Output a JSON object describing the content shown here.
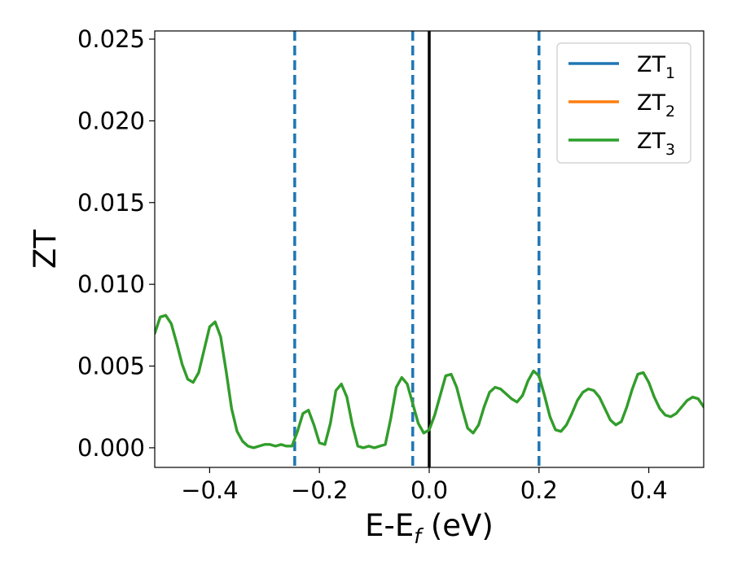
{
  "chart_data": {
    "type": "line",
    "title": "",
    "xlabel": {
      "main": "E-E",
      "sub": "f",
      "suffix": " (eV)"
    },
    "ylabel": "ZT",
    "xlim": [
      -0.5,
      0.5
    ],
    "ylim": [
      -0.0012,
      0.0255
    ],
    "xticks": [
      -0.4,
      -0.2,
      0.0,
      0.2,
      0.4
    ],
    "xtick_labels": [
      "−0.4",
      "−0.2",
      "0.0",
      "0.2",
      "0.4"
    ],
    "yticks": [
      0.0,
      0.005,
      0.01,
      0.015,
      0.02,
      0.025
    ],
    "ytick_labels": [
      "0.000",
      "0.005",
      "0.010",
      "0.015",
      "0.020",
      "0.025"
    ],
    "grid": false,
    "legend_position": "top-right",
    "vlines": [
      {
        "x": 0.0,
        "style": "solid",
        "color": "#000000"
      },
      {
        "x": -0.245,
        "style": "dashed",
        "color": "#1f77b4"
      },
      {
        "x": -0.03,
        "style": "dashed",
        "color": "#1f77b4"
      },
      {
        "x": 0.2,
        "style": "dashed",
        "color": "#1f77b4"
      }
    ],
    "series": [
      {
        "name": "ZT",
        "sub": "1",
        "color": "#1f77b4",
        "x": [
          -0.5,
          -0.49,
          -0.48,
          -0.47,
          -0.46,
          -0.45,
          -0.44,
          -0.43,
          -0.42,
          -0.41,
          -0.4,
          -0.39,
          -0.38,
          -0.37,
          -0.36,
          -0.35,
          -0.34,
          -0.33,
          -0.32,
          -0.31,
          -0.3,
          -0.29,
          -0.28,
          -0.27,
          -0.26,
          -0.25,
          -0.24,
          -0.23,
          -0.22,
          -0.21,
          -0.2,
          -0.19,
          -0.18,
          -0.17,
          -0.16,
          -0.15,
          -0.14,
          -0.13,
          -0.12,
          -0.11,
          -0.1,
          -0.09,
          -0.08,
          -0.07,
          -0.06,
          -0.05,
          -0.04,
          -0.03,
          -0.02,
          -0.01,
          0.0,
          0.01,
          0.02,
          0.03,
          0.04,
          0.05,
          0.06,
          0.07,
          0.08,
          0.09,
          0.1,
          0.11,
          0.12,
          0.13,
          0.14,
          0.15,
          0.16,
          0.17,
          0.18,
          0.19,
          0.2,
          0.21,
          0.22,
          0.23,
          0.24,
          0.25,
          0.26,
          0.27,
          0.28,
          0.29,
          0.3,
          0.31,
          0.32,
          0.33,
          0.34,
          0.35,
          0.36,
          0.37,
          0.38,
          0.39,
          0.4,
          0.41,
          0.42,
          0.43,
          0.44,
          0.45,
          0.46,
          0.47,
          0.48,
          0.49,
          0.5
        ],
        "y": [
          0.007,
          0.008,
          0.0081,
          0.0076,
          0.0064,
          0.0051,
          0.0042,
          0.004,
          0.0046,
          0.006,
          0.0074,
          0.0077,
          0.0068,
          0.0047,
          0.0024,
          0.001,
          0.0004,
          0.0001,
          0.0,
          0.0001,
          0.0002,
          0.0002,
          0.0001,
          0.0002,
          0.0001,
          0.0001,
          0.001,
          0.0021,
          0.0023,
          0.0014,
          0.0003,
          0.0002,
          0.0015,
          0.0035,
          0.0039,
          0.0031,
          0.0014,
          0.0001,
          0.0,
          0.0001,
          0.0,
          0.0001,
          0.0002,
          0.0018,
          0.0037,
          0.0043,
          0.0039,
          0.0027,
          0.0015,
          0.0009,
          0.0011,
          0.002,
          0.0032,
          0.0044,
          0.0045,
          0.0037,
          0.0024,
          0.0012,
          0.0009,
          0.0014,
          0.0025,
          0.0034,
          0.0037,
          0.0036,
          0.0033,
          0.003,
          0.0028,
          0.0032,
          0.0041,
          0.0047,
          0.0044,
          0.0032,
          0.0019,
          0.0011,
          0.001,
          0.0014,
          0.0021,
          0.0029,
          0.0034,
          0.0036,
          0.0035,
          0.0031,
          0.0024,
          0.0017,
          0.0014,
          0.0016,
          0.0025,
          0.0036,
          0.0045,
          0.0046,
          0.004,
          0.0031,
          0.0024,
          0.002,
          0.0019,
          0.0021,
          0.0025,
          0.0029,
          0.0031,
          0.003,
          0.0025
        ]
      },
      {
        "name": "ZT",
        "sub": "2",
        "color": "#ff7f0e",
        "x": [
          -0.5,
          -0.49,
          -0.48,
          -0.47,
          -0.46,
          -0.45,
          -0.44,
          -0.43,
          -0.42,
          -0.41,
          -0.4,
          -0.39,
          -0.38,
          -0.37,
          -0.36,
          -0.35,
          -0.34,
          -0.33,
          -0.32,
          -0.31,
          -0.3,
          -0.29,
          -0.28,
          -0.27,
          -0.26,
          -0.25,
          -0.24,
          -0.23,
          -0.22,
          -0.21,
          -0.2,
          -0.19,
          -0.18,
          -0.17,
          -0.16,
          -0.15,
          -0.14,
          -0.13,
          -0.12,
          -0.11,
          -0.1,
          -0.09,
          -0.08,
          -0.07,
          -0.06,
          -0.05,
          -0.04,
          -0.03,
          -0.02,
          -0.01,
          0.0,
          0.01,
          0.02,
          0.03,
          0.04,
          0.05,
          0.06,
          0.07,
          0.08,
          0.09,
          0.1,
          0.11,
          0.12,
          0.13,
          0.14,
          0.15,
          0.16,
          0.17,
          0.18,
          0.19,
          0.2,
          0.21,
          0.22,
          0.23,
          0.24,
          0.25,
          0.26,
          0.27,
          0.28,
          0.29,
          0.3,
          0.31,
          0.32,
          0.33,
          0.34,
          0.35,
          0.36,
          0.37,
          0.38,
          0.39,
          0.4,
          0.41,
          0.42,
          0.43,
          0.44,
          0.45,
          0.46,
          0.47,
          0.48,
          0.49,
          0.5
        ],
        "y": [
          0.007,
          0.008,
          0.0081,
          0.0076,
          0.0064,
          0.0051,
          0.0042,
          0.004,
          0.0046,
          0.006,
          0.0074,
          0.0077,
          0.0068,
          0.0047,
          0.0024,
          0.001,
          0.0004,
          0.0001,
          0.0,
          0.0001,
          0.0002,
          0.0002,
          0.0001,
          0.0002,
          0.0001,
          0.0001,
          0.001,
          0.0021,
          0.0023,
          0.0014,
          0.0003,
          0.0002,
          0.0015,
          0.0035,
          0.0039,
          0.0031,
          0.0014,
          0.0001,
          0.0,
          0.0001,
          0.0,
          0.0001,
          0.0002,
          0.0018,
          0.0037,
          0.0043,
          0.0039,
          0.0027,
          0.0015,
          0.0009,
          0.0011,
          0.002,
          0.0032,
          0.0044,
          0.0045,
          0.0037,
          0.0024,
          0.0012,
          0.0009,
          0.0014,
          0.0025,
          0.0034,
          0.0037,
          0.0036,
          0.0033,
          0.003,
          0.0028,
          0.0032,
          0.0041,
          0.0047,
          0.0044,
          0.0032,
          0.0019,
          0.0011,
          0.001,
          0.0014,
          0.0021,
          0.0029,
          0.0034,
          0.0036,
          0.0035,
          0.0031,
          0.0024,
          0.0017,
          0.0014,
          0.0016,
          0.0025,
          0.0036,
          0.0045,
          0.0046,
          0.004,
          0.0031,
          0.0024,
          0.002,
          0.0019,
          0.0021,
          0.0025,
          0.0029,
          0.0031,
          0.003,
          0.0025
        ]
      },
      {
        "name": "ZT",
        "sub": "3",
        "color": "#2ca02c",
        "x": [
          -0.5,
          -0.49,
          -0.48,
          -0.47,
          -0.46,
          -0.45,
          -0.44,
          -0.43,
          -0.42,
          -0.41,
          -0.4,
          -0.39,
          -0.38,
          -0.37,
          -0.36,
          -0.35,
          -0.34,
          -0.33,
          -0.32,
          -0.31,
          -0.3,
          -0.29,
          -0.28,
          -0.27,
          -0.26,
          -0.25,
          -0.24,
          -0.23,
          -0.22,
          -0.21,
          -0.2,
          -0.19,
          -0.18,
          -0.17,
          -0.16,
          -0.15,
          -0.14,
          -0.13,
          -0.12,
          -0.11,
          -0.1,
          -0.09,
          -0.08,
          -0.07,
          -0.06,
          -0.05,
          -0.04,
          -0.03,
          -0.02,
          -0.01,
          0.0,
          0.01,
          0.02,
          0.03,
          0.04,
          0.05,
          0.06,
          0.07,
          0.08,
          0.09,
          0.1,
          0.11,
          0.12,
          0.13,
          0.14,
          0.15,
          0.16,
          0.17,
          0.18,
          0.19,
          0.2,
          0.21,
          0.22,
          0.23,
          0.24,
          0.25,
          0.26,
          0.27,
          0.28,
          0.29,
          0.3,
          0.31,
          0.32,
          0.33,
          0.34,
          0.35,
          0.36,
          0.37,
          0.38,
          0.39,
          0.4,
          0.41,
          0.42,
          0.43,
          0.44,
          0.45,
          0.46,
          0.47,
          0.48,
          0.49,
          0.5
        ],
        "y": [
          0.007,
          0.008,
          0.0081,
          0.0076,
          0.0064,
          0.0051,
          0.0042,
          0.004,
          0.0046,
          0.006,
          0.0074,
          0.0077,
          0.0068,
          0.0047,
          0.0024,
          0.001,
          0.0004,
          0.0001,
          0.0,
          0.0001,
          0.0002,
          0.0002,
          0.0001,
          0.0002,
          0.0001,
          0.0001,
          0.001,
          0.0021,
          0.0023,
          0.0014,
          0.0003,
          0.0002,
          0.0015,
          0.0035,
          0.0039,
          0.0031,
          0.0014,
          0.0001,
          0.0,
          0.0001,
          0.0,
          0.0001,
          0.0002,
          0.0018,
          0.0037,
          0.0043,
          0.0039,
          0.0027,
          0.0015,
          0.0009,
          0.0011,
          0.002,
          0.0032,
          0.0044,
          0.0045,
          0.0037,
          0.0024,
          0.0012,
          0.0009,
          0.0014,
          0.0025,
          0.0034,
          0.0037,
          0.0036,
          0.0033,
          0.003,
          0.0028,
          0.0032,
          0.0041,
          0.0047,
          0.0044,
          0.0032,
          0.0019,
          0.0011,
          0.001,
          0.0014,
          0.0021,
          0.0029,
          0.0034,
          0.0036,
          0.0035,
          0.0031,
          0.0024,
          0.0017,
          0.0014,
          0.0016,
          0.0025,
          0.0036,
          0.0045,
          0.0046,
          0.004,
          0.0031,
          0.0024,
          0.002,
          0.0019,
          0.0021,
          0.0025,
          0.0029,
          0.0031,
          0.003,
          0.0025
        ]
      }
    ]
  }
}
